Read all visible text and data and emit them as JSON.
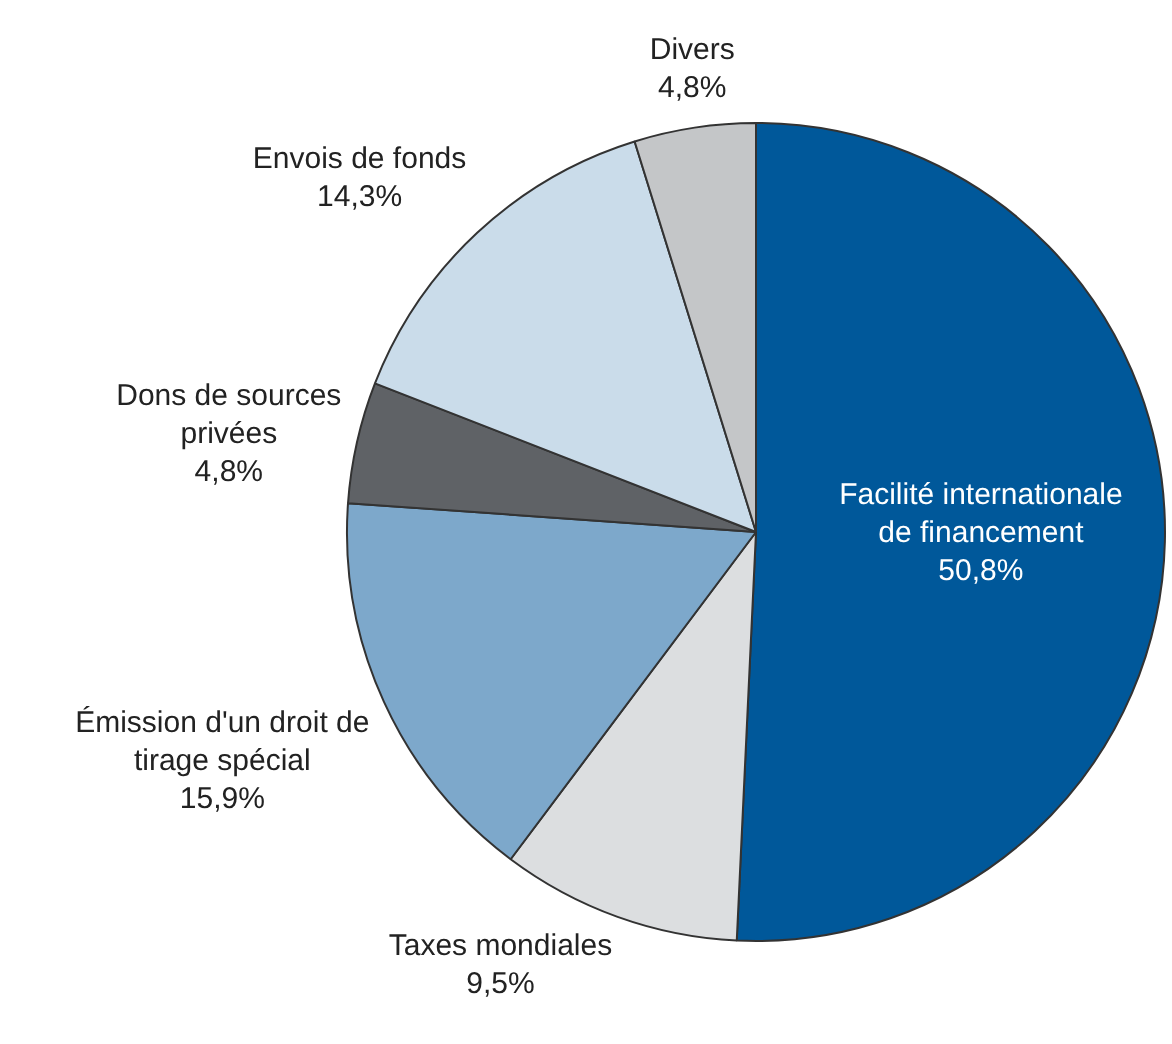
{
  "chart_data": {
    "type": "pie",
    "categories": [
      "Facilité internationale de financement",
      "Taxes mondiales",
      "Émission d'un droit de tirage spécial",
      "Dons de sources privées",
      "Envois de fonds",
      "Divers"
    ],
    "values": [
      50.8,
      9.5,
      15.9,
      4.8,
      14.3,
      4.8
    ],
    "colors": [
      "#00589a",
      "#dcdee0",
      "#7da8cb",
      "#5f6266",
      "#cadcea",
      "#c4c6c8"
    ],
    "value_labels": [
      "50,8%",
      "9,5%",
      "15,9%",
      "4,8%",
      "14,3%",
      "4,8%"
    ],
    "legend": false
  }
}
